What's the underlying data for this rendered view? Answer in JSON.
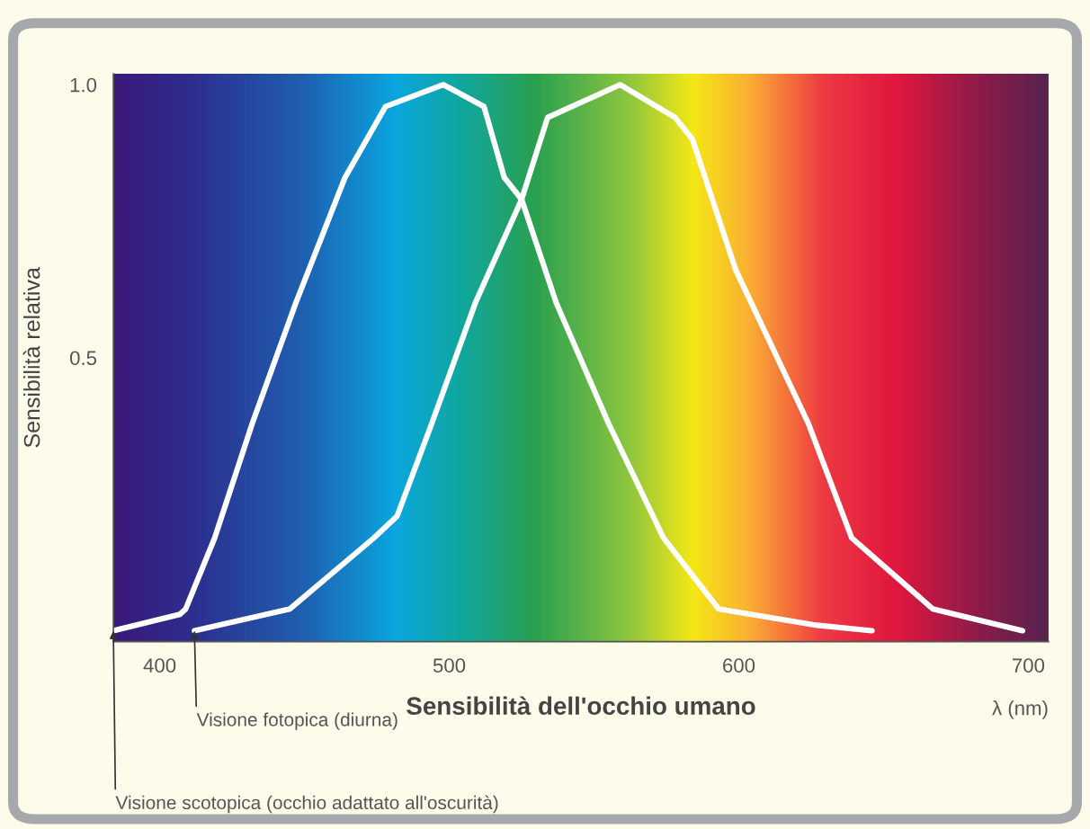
{
  "chart_data": {
    "type": "line",
    "xlabel": "Sensibilità dell'occhio umano",
    "ylabel": "Sensibilità relativa",
    "xlim": [
      384,
      707
    ],
    "ylim": [
      -0.02,
      1.02
    ],
    "xticks": [
      400,
      500,
      600,
      700
    ],
    "yticks": [
      {
        "value": 0.5,
        "label": "0.5"
      },
      {
        "value": 1.0,
        "label": "1.0"
      }
    ],
    "grid": false,
    "legend": false,
    "series": [
      {
        "color": "#ffffff",
        "x": [
          384,
          407,
          409,
          419,
          432,
          447,
          464,
          478,
          498,
          512,
          519,
          525,
          537,
          555,
          574,
          593,
          627,
          646
        ],
        "values": [
          0,
          0.03,
          0.04,
          0.17,
          0.38,
          0.6,
          0.83,
          0.96,
          1.0,
          0.96,
          0.83,
          0.79,
          0.6,
          0.38,
          0.17,
          0.04,
          0.01,
          0
        ]
      },
      {
        "color": "#ffffff",
        "x": [
          412,
          445,
          474,
          482,
          494,
          509,
          525,
          534,
          559,
          578,
          584,
          599,
          624,
          639,
          667,
          698
        ],
        "values": [
          0,
          0.04,
          0.17,
          0.21,
          0.38,
          0.6,
          0.79,
          0.94,
          1.0,
          0.94,
          0.9,
          0.66,
          0.38,
          0.17,
          0.04,
          0
        ]
      }
    ],
    "annotations": [
      {
        "text": "Visione fotopica (diurna)",
        "x": 412,
        "y": 0
      },
      {
        "text": "Visione scotopica (occhio adattato all'oscurità)",
        "x": 384,
        "y": 0
      },
      "λ (nm)"
    ]
  }
}
